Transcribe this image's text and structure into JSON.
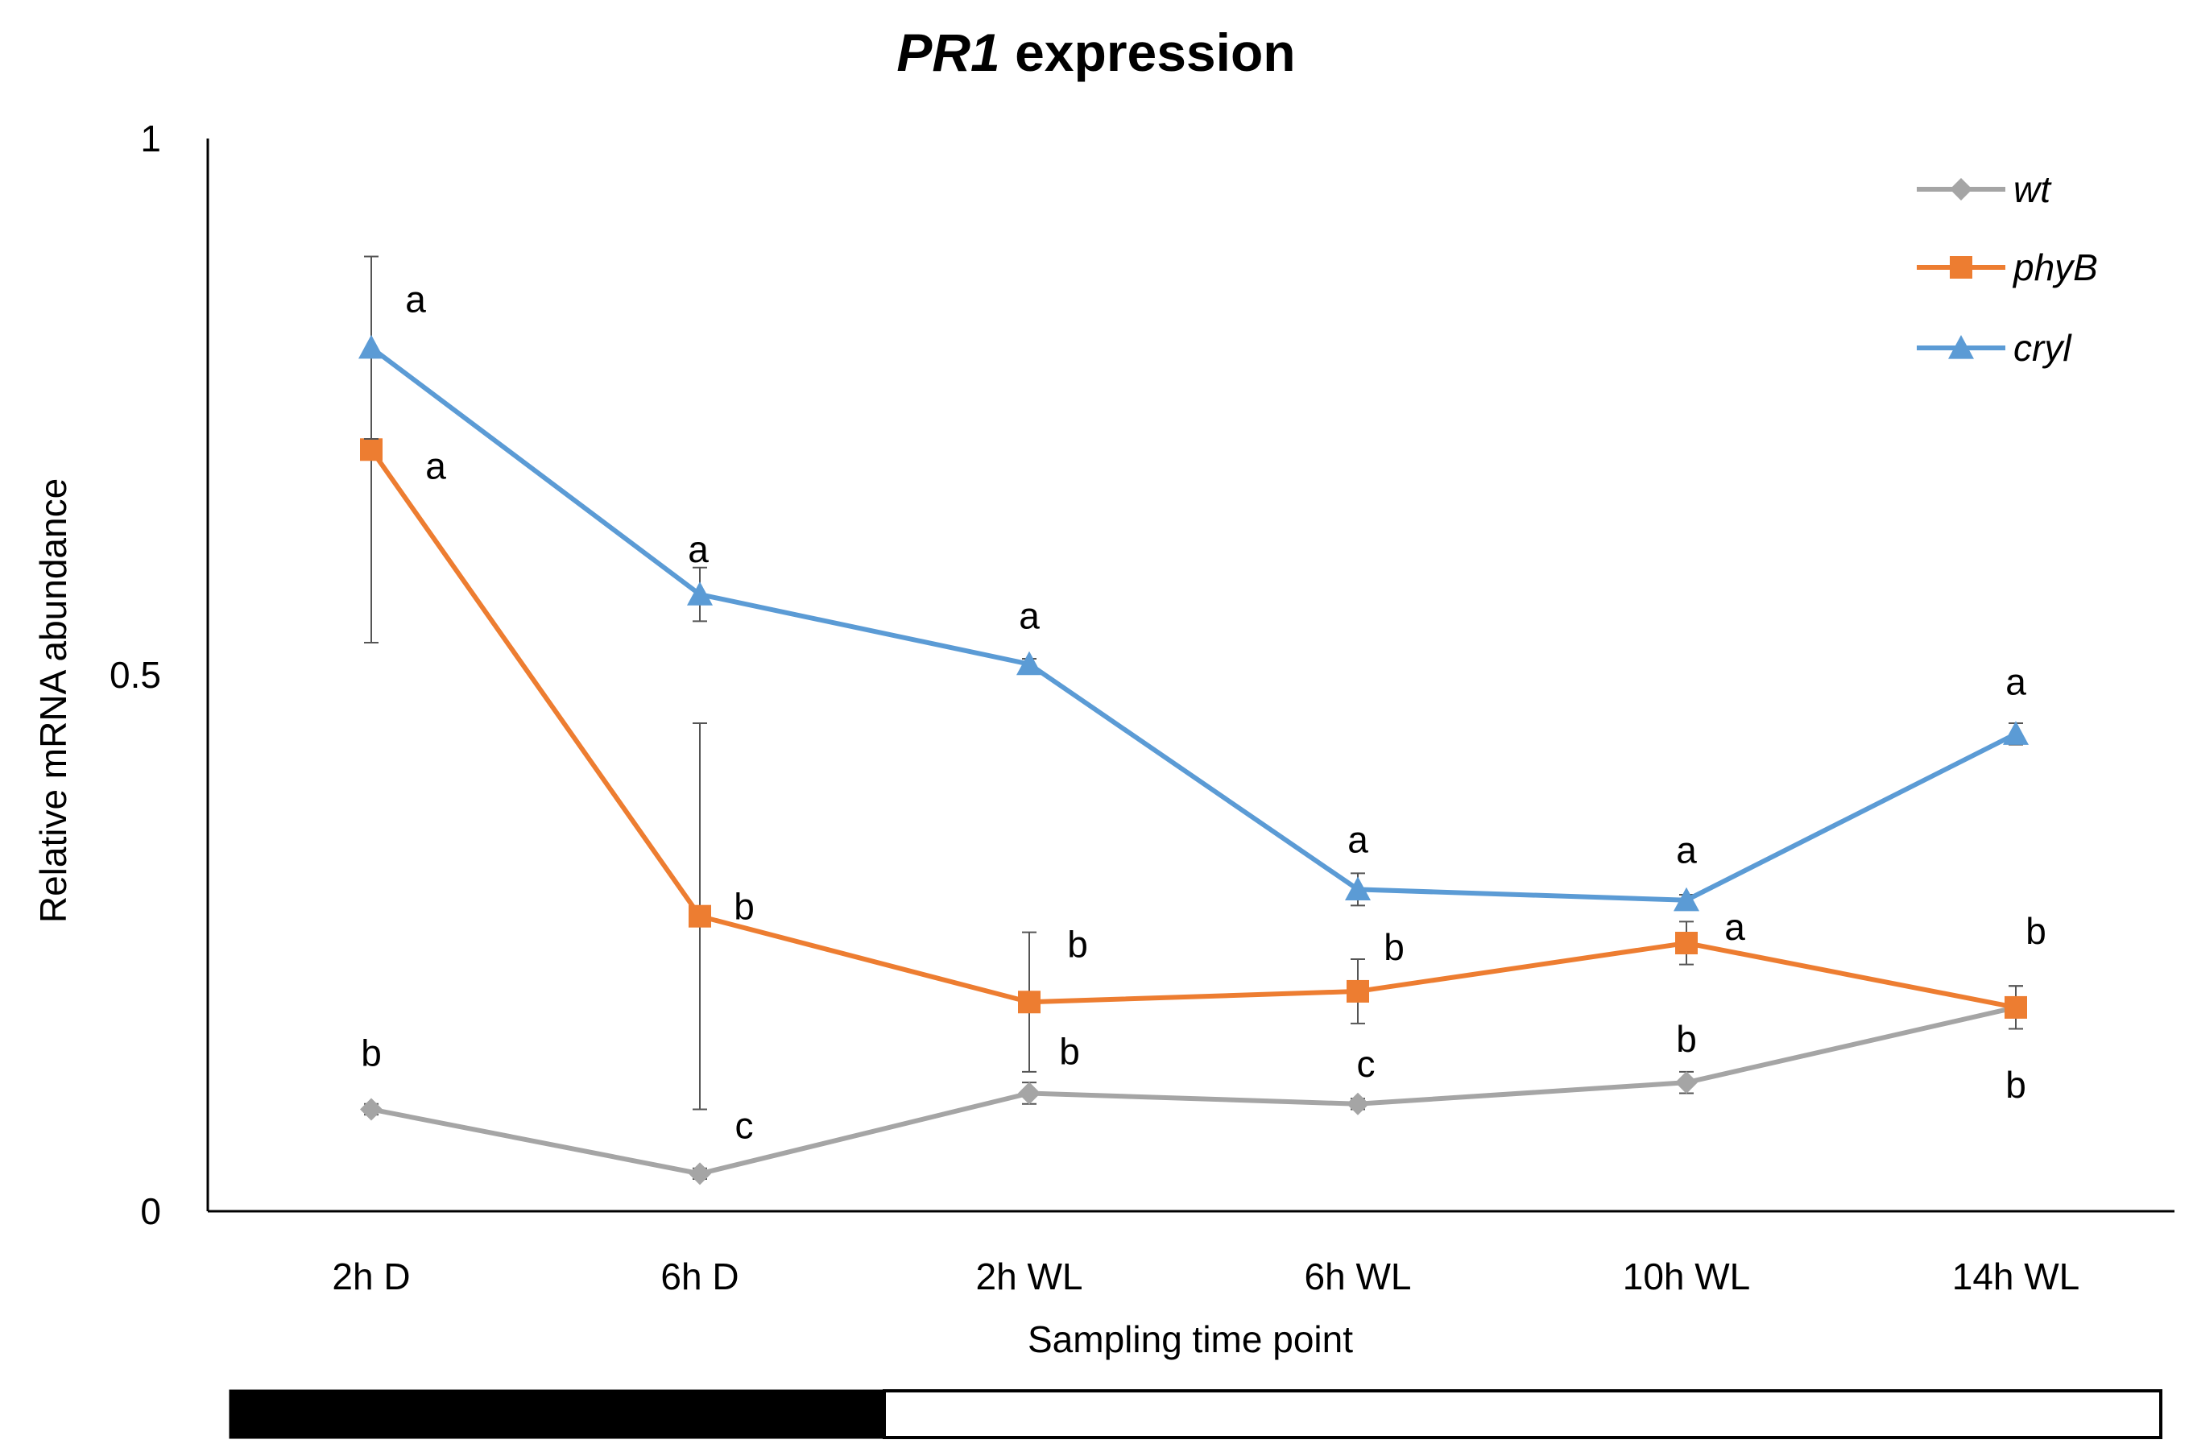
{
  "chart_data": {
    "type": "line",
    "title_italic": "PR1",
    "title_rest": " expression",
    "xlabel": "Sampling time point",
    "ylabel": "Relative mRNA abundance",
    "categories": [
      "2h D",
      "6h D",
      "2h WL",
      "6h WL",
      "10h WL",
      "14h WL"
    ],
    "ylim": [
      0,
      1
    ],
    "yticks": [
      {
        "value": 0,
        "label": "0"
      },
      {
        "value": 0.5,
        "label": "0.5"
      },
      {
        "value": 1,
        "label": "1"
      }
    ],
    "grid": false,
    "legend_position": "top-right",
    "series": [
      {
        "name": "wt",
        "color": "#a5a5a5",
        "marker": "diamond",
        "values": [
          0.095,
          0.035,
          0.11,
          0.1,
          0.12,
          0.19
        ],
        "errors": [
          0.005,
          0.005,
          0.01,
          0.005,
          0.01,
          0.02
        ],
        "letters": [
          "b",
          "c",
          "b",
          "c",
          "b",
          "b"
        ]
      },
      {
        "name": "phyB",
        "color": "#ed7d31",
        "marker": "square",
        "values": [
          0.71,
          0.275,
          0.195,
          0.205,
          0.25,
          0.19
        ],
        "errors": [
          0.18,
          0.18,
          0.065,
          0.03,
          0.02,
          0.02
        ],
        "letters": [
          "a",
          "b",
          "b",
          "b",
          "a",
          "b"
        ]
      },
      {
        "name": "cryl",
        "color": "#5b9bd5",
        "marker": "triangle",
        "values": [
          0.805,
          0.575,
          0.51,
          0.3,
          0.29,
          0.445
        ],
        "errors": [
          0.085,
          0.025,
          0.005,
          0.015,
          0.005,
          0.01
        ],
        "letters": [
          "a",
          "a",
          "a",
          "a",
          "a",
          "a"
        ]
      }
    ],
    "light_bar": [
      {
        "label": "dark",
        "from": "2h D",
        "to": "6h D",
        "color": "#000000"
      },
      {
        "label": "white light",
        "from": "2h WL",
        "to": "14h WL",
        "color": "#ffffff"
      }
    ]
  }
}
